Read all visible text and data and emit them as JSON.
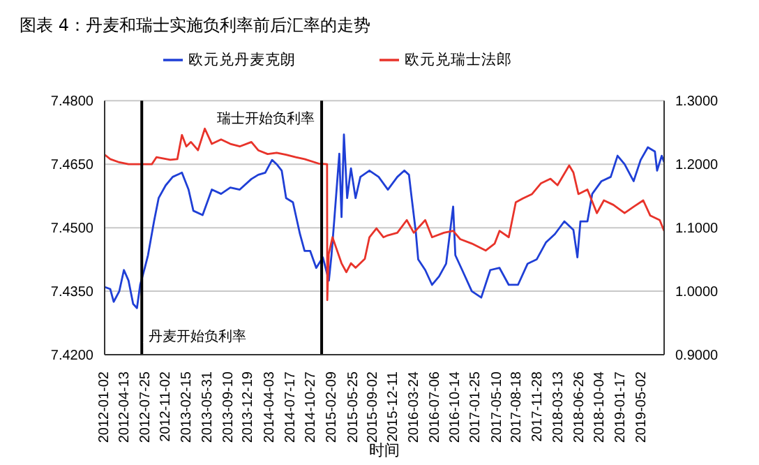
{
  "chart_data": {
    "type": "line",
    "title": "图表 4：丹麦和瑞士实施负利率前后汇率的走势",
    "xlabel": "时间",
    "xlim": [
      "2012-01-02",
      "2019-08-20"
    ],
    "xticks": [
      "2012-01-02",
      "2012-04-13",
      "2012-07-25",
      "2012-11-02",
      "2013-02-15",
      "2013-05-31",
      "2013-09-10",
      "2013-12-19",
      "2014-04-03",
      "2014-07-17",
      "2014-10-27",
      "2015-02-09",
      "2015-05-25",
      "2015-09-02",
      "2015-12-11",
      "2016-03-24",
      "2016-07-06",
      "2016-10-14",
      "2017-01-25",
      "2017-05-10",
      "2017-08-18",
      "2017-11-28",
      "2018-03-13",
      "2018-06-26",
      "2018-10-04",
      "2019-01-17",
      "2019-05-02"
    ],
    "ylim": [
      7.42,
      7.48
    ],
    "yticks": [
      {
        "value": 7.42,
        "label": "7.4200"
      },
      {
        "value": 7.435,
        "label": "7.4350"
      },
      {
        "value": 7.45,
        "label": "7.4500"
      },
      {
        "value": 7.465,
        "label": "7.4650"
      },
      {
        "value": 7.48,
        "label": "7.4800"
      }
    ],
    "y2lim": [
      0.9,
      1.3
    ],
    "y2ticks": [
      {
        "value": 0.9,
        "label": "0.9000"
      },
      {
        "value": 1.0,
        "label": "1.0000"
      },
      {
        "value": 1.1,
        "label": "1.1000"
      },
      {
        "value": 1.2,
        "label": "1.2000"
      },
      {
        "value": 1.3,
        "label": "1.3000"
      }
    ],
    "grid": "y",
    "legend": "top",
    "ref_lines": [
      {
        "axis": "x",
        "value": "2012-07-05",
        "label": "丹麦开始负利率",
        "color": "#000000"
      },
      {
        "axis": "x",
        "value": "2014-12-18",
        "label": "瑞士开始负利率",
        "color": "#000000"
      }
    ],
    "series": [
      {
        "name": "欧元兑丹麦克朗",
        "color": "#1f3fd6",
        "x": [
          "2012-01-02",
          "2012-01-30",
          "2012-02-16",
          "2012-03-15",
          "2012-04-07",
          "2012-04-30",
          "2012-05-23",
          "2012-06-11",
          "2012-06-27",
          "2012-07-20",
          "2012-08-05",
          "2012-09-04",
          "2012-09-27",
          "2012-11-01",
          "2012-12-06",
          "2013-01-21",
          "2013-02-23",
          "2013-03-19",
          "2013-05-04",
          "2013-06-19",
          "2013-08-04",
          "2013-09-19",
          "2013-11-05",
          "2014-01-02",
          "2014-02-05",
          "2014-03-12",
          "2014-04-15",
          "2014-05-08",
          "2014-06-02",
          "2014-06-24",
          "2014-07-28",
          "2014-09-01",
          "2014-09-24",
          "2014-10-22",
          "2014-11-21",
          "2014-12-24",
          "2015-01-23",
          "2015-02-05",
          "2015-02-20",
          "2015-03-16",
          "2015-03-27",
          "2015-04-08",
          "2015-04-24",
          "2015-05-13",
          "2015-06-05",
          "2015-06-29",
          "2015-08-13",
          "2015-09-28",
          "2015-11-13",
          "2015-12-30",
          "2016-02-03",
          "2016-02-26",
          "2016-03-08",
          "2016-03-31",
          "2016-04-12",
          "2016-05-17",
          "2016-06-20",
          "2016-07-25",
          "2016-08-29",
          "2016-10-03",
          "2016-10-14",
          "2016-11-17",
          "2017-01-04",
          "2017-02-20",
          "2017-04-06",
          "2017-05-22",
          "2017-07-07",
          "2017-08-22",
          "2017-10-09",
          "2017-11-23",
          "2018-01-08",
          "2018-02-22",
          "2018-04-10",
          "2018-05-25",
          "2018-06-14",
          "2018-06-29",
          "2018-08-03",
          "2018-08-27",
          "2018-10-12",
          "2018-11-27",
          "2018-12-31",
          "2019-02-04",
          "2019-03-21",
          "2019-04-25",
          "2019-05-31",
          "2019-07-05",
          "2019-07-16",
          "2019-08-08",
          "2019-08-20"
        ],
        "values": [
          7.436,
          7.4355,
          7.4325,
          7.435,
          7.44,
          7.4375,
          7.432,
          7.431,
          7.4365,
          7.4405,
          7.4435,
          7.4515,
          7.457,
          7.46,
          7.462,
          7.463,
          7.459,
          7.454,
          7.453,
          7.459,
          7.458,
          7.4595,
          7.459,
          7.4615,
          7.4625,
          7.463,
          7.466,
          7.465,
          7.4635,
          7.457,
          7.456,
          7.4485,
          7.4445,
          7.4445,
          7.4405,
          7.443,
          7.4375,
          7.4435,
          7.4525,
          7.4675,
          7.4525,
          7.472,
          7.457,
          7.464,
          7.457,
          7.462,
          7.4635,
          7.462,
          7.459,
          7.462,
          7.4635,
          7.4625,
          7.458,
          7.449,
          7.4425,
          7.44,
          7.4365,
          7.4385,
          7.4415,
          7.455,
          7.4435,
          7.44,
          7.435,
          7.4335,
          7.44,
          7.4405,
          7.4365,
          7.4365,
          7.4415,
          7.4425,
          7.4465,
          7.4485,
          7.4515,
          7.4495,
          7.443,
          7.4515,
          7.4515,
          7.458,
          7.461,
          7.462,
          7.467,
          7.465,
          7.461,
          7.466,
          7.469,
          7.468,
          7.4635,
          7.467,
          7.4655
        ]
      },
      {
        "name": "欧元兑瑞士法郎",
        "color": "#e8332a",
        "axis": "y2",
        "x": [
          "2012-01-02",
          "2012-01-30",
          "2012-03-15",
          "2012-04-30",
          "2012-08-24",
          "2012-09-16",
          "2012-11-24",
          "2012-12-29",
          "2013-01-21",
          "2013-02-12",
          "2013-03-07",
          "2013-04-11",
          "2013-05-15",
          "2013-06-19",
          "2013-08-04",
          "2013-09-19",
          "2013-11-05",
          "2014-01-02",
          "2014-02-05",
          "2014-03-24",
          "2014-05-08",
          "2014-06-24",
          "2014-08-11",
          "2014-09-24",
          "2014-12-03",
          "2015-01-14",
          "2015-01-15",
          "2015-01-22",
          "2015-02-10",
          "2015-03-05",
          "2015-03-27",
          "2015-04-20",
          "2015-05-13",
          "2015-06-05",
          "2015-07-21",
          "2015-08-13",
          "2015-09-17",
          "2015-10-22",
          "2015-11-13",
          "2015-12-30",
          "2016-02-15",
          "2016-03-21",
          "2016-05-17",
          "2016-06-20",
          "2016-08-18",
          "2016-10-03",
          "2016-11-07",
          "2017-01-04",
          "2017-03-14",
          "2017-04-28",
          "2017-05-22",
          "2017-07-07",
          "2017-08-11",
          "2017-09-15",
          "2017-10-31",
          "2017-12-15",
          "2018-01-31",
          "2018-03-07",
          "2018-05-04",
          "2018-05-25",
          "2018-06-19",
          "2018-08-03",
          "2018-09-19",
          "2018-10-24",
          "2018-12-10",
          "2019-02-04",
          "2019-03-21",
          "2019-05-08",
          "2019-06-12",
          "2019-07-29",
          "2019-08-20"
        ],
        "values": [
          1.215,
          1.208,
          1.203,
          1.2,
          1.2,
          1.211,
          1.207,
          1.208,
          1.246,
          1.228,
          1.235,
          1.222,
          1.256,
          1.232,
          1.239,
          1.232,
          1.228,
          1.235,
          1.222,
          1.216,
          1.218,
          1.215,
          1.211,
          1.208,
          1.201,
          1.2,
          0.986,
          1.058,
          1.085,
          1.064,
          1.044,
          1.03,
          1.044,
          1.037,
          1.051,
          1.085,
          1.099,
          1.085,
          1.088,
          1.092,
          1.112,
          1.092,
          1.112,
          1.085,
          1.092,
          1.095,
          1.082,
          1.075,
          1.064,
          1.075,
          1.095,
          1.085,
          1.14,
          1.146,
          1.153,
          1.17,
          1.177,
          1.167,
          1.198,
          1.187,
          1.153,
          1.16,
          1.123,
          1.143,
          1.136,
          1.123,
          1.133,
          1.143,
          1.119,
          1.112,
          1.095
        ]
      }
    ]
  }
}
